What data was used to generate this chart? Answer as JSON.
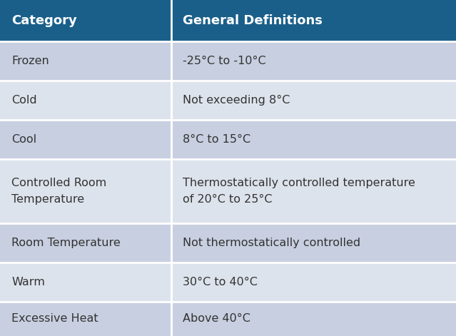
{
  "header": [
    "Category",
    "General Definitions"
  ],
  "rows": [
    [
      "Frozen",
      "-25°C to -10°C"
    ],
    [
      "Cold",
      "Not exceeding 8°C"
    ],
    [
      "Cool",
      "8°C to 15°C"
    ],
    [
      "Controlled Room\nTemperature",
      "Thermostatically controlled temperature\nof 20°C to 25°C"
    ],
    [
      "Room Temperature",
      "Not thermostatically controlled"
    ],
    [
      "Warm",
      "30°C to 40°C"
    ],
    [
      "Excessive Heat",
      "Above 40°C"
    ]
  ],
  "header_bg": "#1a5f8a",
  "header_text_color": "#ffffff",
  "row_bg_odd": "#c8cfe0",
  "row_bg_even": "#dde3ec",
  "row_text_color": "#333333",
  "col_split": 0.375,
  "figsize": [
    6.39,
    4.71
  ],
  "dpi": 100,
  "header_fontsize": 13,
  "row_fontsize": 11.5,
  "divider_color": "#ffffff",
  "outer_bg": "#ffffff"
}
